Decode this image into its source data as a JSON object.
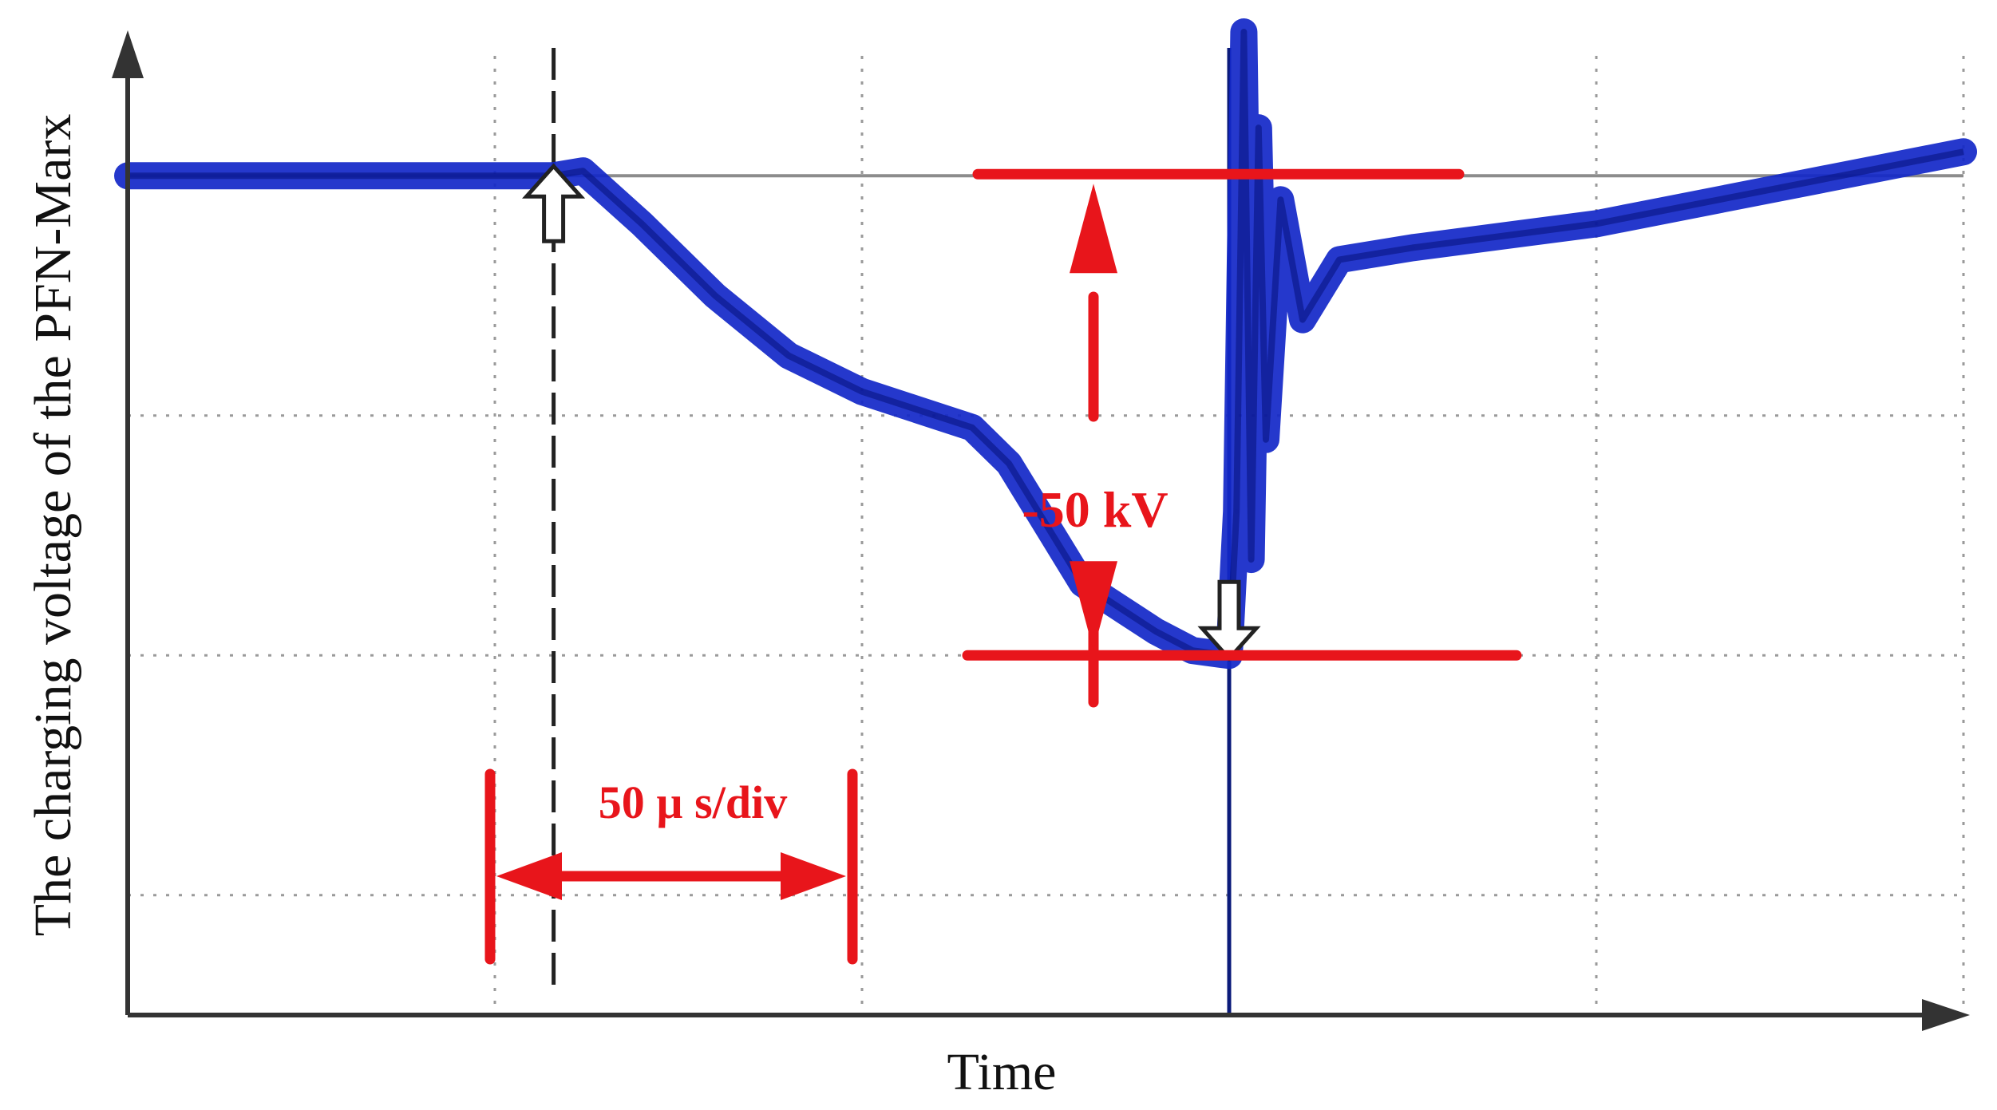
{
  "chart_data": {
    "type": "line",
    "title": "",
    "xlabel": "Time",
    "ylabel": "The charging voltage of the PFN-Marx",
    "xlim": [
      0,
      250
    ],
    "ylim": [
      -3.5,
      0.5
    ],
    "grid": true,
    "x_units": "µs",
    "y_units": "div",
    "time_scale_label": "50 µ s/div",
    "voltage_label": "-50 kV",
    "series": [
      {
        "name": "charging voltage",
        "color": "#1227c8",
        "x": [
          0,
          58,
          62,
          70,
          80,
          90,
          100,
          110,
          115,
          120,
          126,
          130,
          140,
          145,
          150,
          151,
          152,
          153,
          154,
          155,
          157,
          160,
          165,
          175,
          200,
          225,
          250
        ],
        "y": [
          0,
          0,
          0.02,
          -0.2,
          -0.5,
          -0.75,
          -0.9,
          -1.0,
          -1.05,
          -1.2,
          -1.5,
          -1.7,
          -1.9,
          -1.98,
          -2.0,
          -1.4,
          0.6,
          -1.6,
          0.2,
          -1.1,
          -0.1,
          -0.6,
          -0.35,
          -0.3,
          -0.2,
          -0.05,
          0.1
        ]
      }
    ],
    "markers": [
      {
        "name": "start-marker",
        "x": 58,
        "y": 0,
        "direction": "up"
      },
      {
        "name": "end-marker",
        "x": 150,
        "y": -2.0,
        "direction": "down"
      }
    ],
    "reference_lines": {
      "top_level": 0,
      "bottom_level": -2.0,
      "start_time": 58,
      "trigger_time": 150
    }
  },
  "colors": {
    "trace": "#1227c8",
    "annotation": "#e8151b",
    "grid": "#9a9a9a",
    "axis": "#333333"
  }
}
